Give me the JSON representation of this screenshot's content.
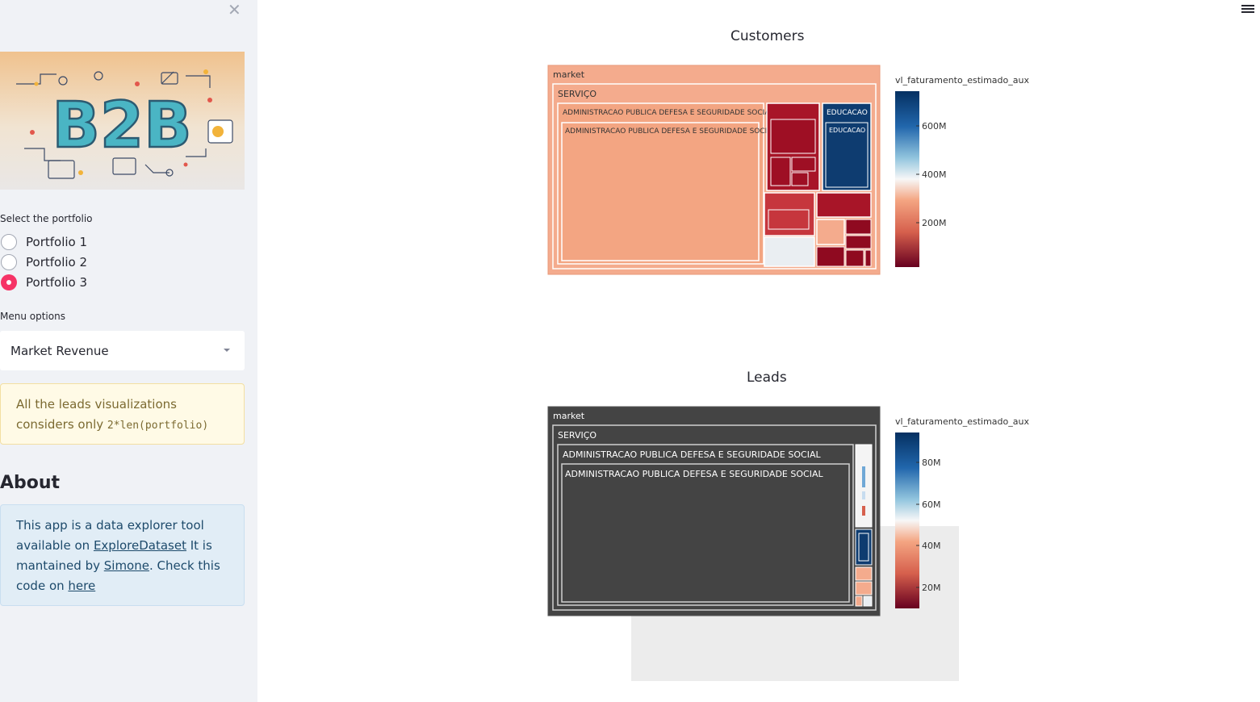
{
  "sidebar": {
    "close_icon": "close-icon",
    "banner_text": "B2B",
    "portfolio_label": "Select the portfolio",
    "portfolio_options": [
      "Portfolio 1",
      "Portfolio 2",
      "Portfolio 3"
    ],
    "portfolio_selected": "Portfolio 3",
    "menu_label": "Menu options",
    "menu_value": "Market Revenue",
    "warning_prefix": "All the leads visualizations considers only ",
    "warning_code": "2*len(portfolio)",
    "about_title": "About",
    "about_t1": "This app is a data explorer tool available on ",
    "about_l1": "ExploreDataset",
    "about_t2": " It is mantained by ",
    "about_l2": "Simone",
    "about_t3": ". Check this code on ",
    "about_l3": "here"
  },
  "colors": {
    "accent": "#f63366",
    "salmon": "#f4a582",
    "dark_red": "#a50f28",
    "navy": "#0e3c70",
    "leads_bg": "#444444"
  },
  "charts": {
    "customers": {
      "title": "Customers",
      "root": "market",
      "level1": "SERVIÇO",
      "level2": "ADMINISTRACAO PUBLICA DEFESA E SEGURIDADE SOCIAL",
      "level3": "ADMINISTRACAO PUBLICA DEFESA E SEGURIDADE SOCIAL",
      "side_label_1": "EDUCACAO",
      "side_label_2": "EDUCACAO",
      "colorbar_title": "vl_faturamento_estimado_aux",
      "colorbar_ticks": [
        "600M",
        "400M",
        "200M"
      ]
    },
    "leads": {
      "title": "Leads",
      "root": "market",
      "level1": "SERVIÇO",
      "level2": "ADMINISTRACAO PUBLICA DEFESA E SEGURIDADE SOCIAL",
      "level3": "ADMINISTRACAO PUBLICA DEFESA E SEGURIDADE SOCIAL",
      "colorbar_title": "vl_faturamento_estimado_aux",
      "colorbar_ticks": [
        "80M",
        "60M",
        "40M",
        "20M"
      ]
    }
  }
}
